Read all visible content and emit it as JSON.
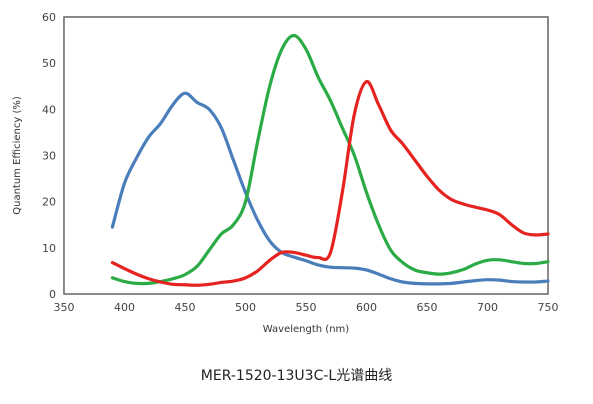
{
  "caption": "MER-1520-13U3C-L光谱曲线",
  "chart_data": {
    "type": "line",
    "title": "",
    "xlabel": "Wavelength (nm)",
    "ylabel": "Quantum Efficiency (%)",
    "xlim": [
      350,
      750
    ],
    "ylim": [
      0,
      60
    ],
    "xticks": [
      350,
      400,
      450,
      500,
      550,
      600,
      650,
      700,
      750
    ],
    "yticks": [
      0,
      10,
      20,
      30,
      40,
      50,
      60
    ],
    "grid": true,
    "legend": "none",
    "series": [
      {
        "color": "#4a7ebb",
        "points": [
          [
            390,
            14.5
          ],
          [
            400,
            24
          ],
          [
            410,
            29.5
          ],
          [
            420,
            34
          ],
          [
            430,
            37
          ],
          [
            440,
            41
          ],
          [
            450,
            43.5
          ],
          [
            460,
            41.5
          ],
          [
            470,
            40
          ],
          [
            480,
            36
          ],
          [
            490,
            29
          ],
          [
            500,
            22
          ],
          [
            510,
            16
          ],
          [
            520,
            11.5
          ],
          [
            530,
            9
          ],
          [
            540,
            8
          ],
          [
            550,
            7.2
          ],
          [
            560,
            6.3
          ],
          [
            570,
            5.8
          ],
          [
            580,
            5.7
          ],
          [
            590,
            5.6
          ],
          [
            600,
            5.2
          ],
          [
            610,
            4.3
          ],
          [
            620,
            3.3
          ],
          [
            630,
            2.6
          ],
          [
            640,
            2.3
          ],
          [
            650,
            2.2
          ],
          [
            660,
            2.2
          ],
          [
            670,
            2.3
          ],
          [
            680,
            2.6
          ],
          [
            690,
            2.9
          ],
          [
            700,
            3.1
          ],
          [
            710,
            3.0
          ],
          [
            720,
            2.7
          ],
          [
            730,
            2.6
          ],
          [
            740,
            2.6
          ],
          [
            750,
            2.8
          ]
        ]
      },
      {
        "color": "#2aab45",
        "points": [
          [
            390,
            3.5
          ],
          [
            400,
            2.7
          ],
          [
            410,
            2.3
          ],
          [
            420,
            2.3
          ],
          [
            430,
            2.7
          ],
          [
            440,
            3.3
          ],
          [
            450,
            4.2
          ],
          [
            460,
            6
          ],
          [
            470,
            9.5
          ],
          [
            480,
            13
          ],
          [
            490,
            15
          ],
          [
            500,
            20
          ],
          [
            510,
            33
          ],
          [
            520,
            45
          ],
          [
            530,
            53
          ],
          [
            540,
            56
          ],
          [
            550,
            53
          ],
          [
            560,
            47
          ],
          [
            570,
            42
          ],
          [
            580,
            36
          ],
          [
            590,
            30
          ],
          [
            600,
            22
          ],
          [
            610,
            15
          ],
          [
            620,
            9.5
          ],
          [
            630,
            6.8
          ],
          [
            640,
            5.2
          ],
          [
            650,
            4.6
          ],
          [
            660,
            4.3
          ],
          [
            670,
            4.6
          ],
          [
            680,
            5.3
          ],
          [
            690,
            6.5
          ],
          [
            700,
            7.3
          ],
          [
            710,
            7.4
          ],
          [
            720,
            7.0
          ],
          [
            730,
            6.6
          ],
          [
            740,
            6.6
          ],
          [
            750,
            7.0
          ]
        ]
      },
      {
        "color": "#e52320",
        "points": [
          [
            390,
            6.8
          ],
          [
            400,
            5.5
          ],
          [
            410,
            4.3
          ],
          [
            420,
            3.3
          ],
          [
            430,
            2.6
          ],
          [
            440,
            2.1
          ],
          [
            450,
            2.0
          ],
          [
            460,
            1.9
          ],
          [
            470,
            2.1
          ],
          [
            480,
            2.5
          ],
          [
            490,
            2.8
          ],
          [
            500,
            3.5
          ],
          [
            510,
            5.0
          ],
          [
            520,
            7.3
          ],
          [
            530,
            9.0
          ],
          [
            540,
            9.0
          ],
          [
            550,
            8.4
          ],
          [
            560,
            7.9
          ],
          [
            570,
            8.8
          ],
          [
            580,
            22
          ],
          [
            590,
            39
          ],
          [
            600,
            46
          ],
          [
            610,
            41
          ],
          [
            620,
            35.5
          ],
          [
            630,
            32.5
          ],
          [
            640,
            29
          ],
          [
            650,
            25.5
          ],
          [
            660,
            22.5
          ],
          [
            670,
            20.5
          ],
          [
            680,
            19.5
          ],
          [
            690,
            18.8
          ],
          [
            700,
            18.2
          ],
          [
            710,
            17.2
          ],
          [
            720,
            15
          ],
          [
            730,
            13.2
          ],
          [
            740,
            12.8
          ],
          [
            750,
            13
          ]
        ]
      }
    ]
  }
}
